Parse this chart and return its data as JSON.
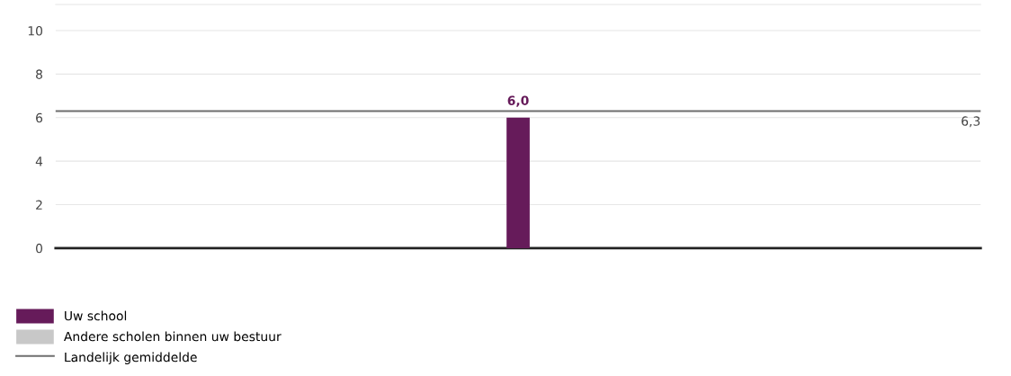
{
  "chart_data": {
    "type": "bar",
    "categories": [
      null
    ],
    "series": [
      {
        "name": "Uw school",
        "color": "#661b5a",
        "values": [
          6.0
        ],
        "value_labels": [
          "6,0"
        ]
      },
      {
        "name": "Andere scholen binnen uw bestuur",
        "color": "#c8c8c8",
        "values": [
          null
        ]
      }
    ],
    "ylim": [
      0,
      11.2
    ],
    "yticks": [
      0,
      2,
      4,
      6,
      8,
      10
    ],
    "grid": "y",
    "legend": "bottom left",
    "ref_lines": [
      {
        "axis": "y",
        "value": 6.3,
        "label": "Landelijk gemiddelde",
        "color": "#6e6e6e",
        "line_style": "solid"
      }
    ],
    "annotations": [
      {
        "text": "6,3",
        "y": 6.3
      }
    ]
  }
}
